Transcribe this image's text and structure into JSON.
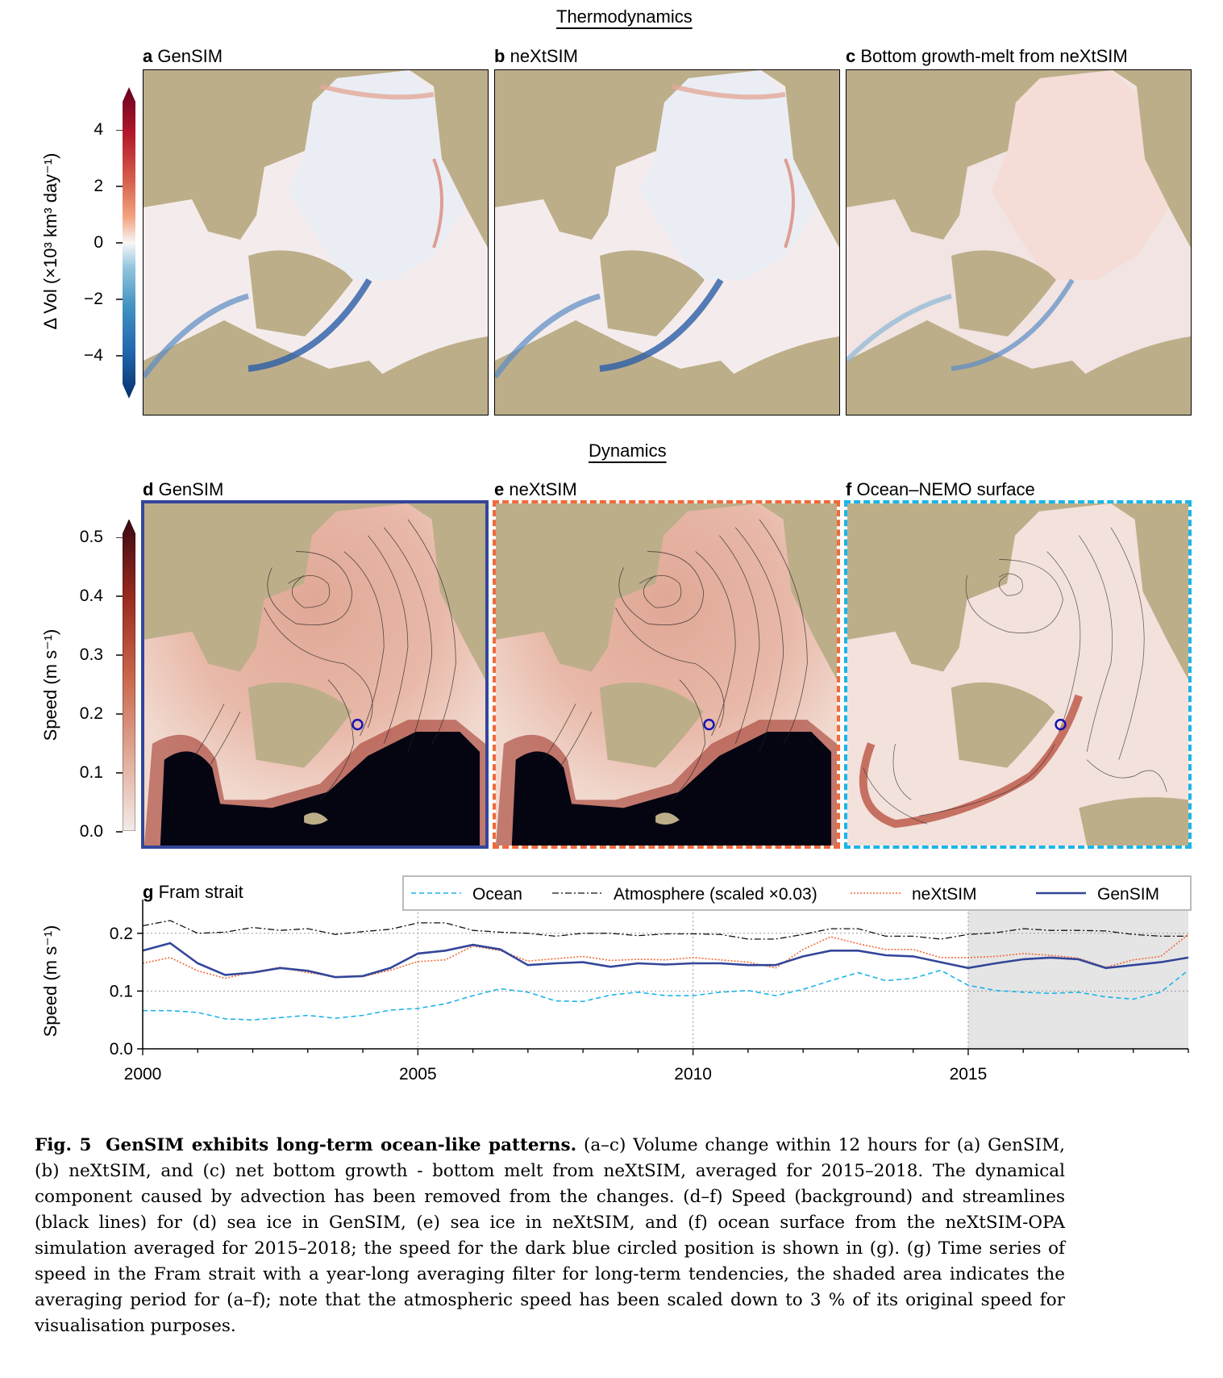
{
  "sections": {
    "thermo_title": "Thermodynamics",
    "dyn_title": "Dynamics"
  },
  "panels": {
    "a": {
      "letter": "a",
      "title": "GenSIM"
    },
    "b": {
      "letter": "b",
      "title": "neXtSIM"
    },
    "c": {
      "letter": "c",
      "title": "Bottom growth-melt from neXtSIM"
    },
    "d": {
      "letter": "d",
      "title": "GenSIM"
    },
    "e": {
      "letter": "e",
      "title": "neXtSIM"
    },
    "f": {
      "letter": "f",
      "title": "Ocean–NEMO surface"
    }
  },
  "colorbars": {
    "thermo": {
      "label": "Δ Vol (×10³ km³ day⁻¹)",
      "ticks": [
        "4",
        "2",
        "0",
        "−2",
        "−4"
      ]
    },
    "dyn": {
      "label": "Speed (m s⁻¹)",
      "ticks": [
        "0.5",
        "0.4",
        "0.3",
        "0.2",
        "0.1",
        "0.0"
      ]
    }
  },
  "colors": {
    "gensim": "#334699",
    "nextsim": "#f06a3a",
    "ocean": "#1bb5e8",
    "atmosphere": "#111111",
    "land": "#bdae8a",
    "cbar_top": "#67001f",
    "cbar_bottom": "#08306b"
  },
  "chart_data": {
    "type": "line",
    "title": "g Fram strait",
    "panel_letter": "g",
    "panel_title": "Fram strait",
    "ylabel": "Speed (m s⁻¹)",
    "ylim": [
      0.0,
      0.25
    ],
    "yticks": [
      "0.0",
      "0.1",
      "0.2"
    ],
    "xlim": [
      2000,
      2019
    ],
    "xticks": [
      "2000",
      "2005",
      "2010",
      "2015"
    ],
    "shaded_period": [
      2015,
      2019
    ],
    "legend_location": "top-right",
    "x": [
      2000.0,
      2000.5,
      2001.0,
      2001.5,
      2002.0,
      2002.5,
      2003.0,
      2003.5,
      2004.0,
      2004.5,
      2005.0,
      2005.5,
      2006.0,
      2006.5,
      2007.0,
      2007.5,
      2008.0,
      2008.5,
      2009.0,
      2009.5,
      2010.0,
      2010.5,
      2011.0,
      2011.5,
      2012.0,
      2012.5,
      2013.0,
      2013.5,
      2014.0,
      2014.5,
      2015.0,
      2015.5,
      2016.0,
      2016.5,
      2017.0,
      2017.5,
      2018.0,
      2018.5,
      2019.0
    ],
    "series": [
      {
        "name": "Ocean",
        "style": "dashed",
        "values": [
          0.066,
          0.066,
          0.063,
          0.052,
          0.05,
          0.054,
          0.058,
          0.053,
          0.058,
          0.067,
          0.07,
          0.078,
          0.092,
          0.104,
          0.098,
          0.083,
          0.082,
          0.093,
          0.098,
          0.092,
          0.092,
          0.098,
          0.101,
          0.092,
          0.103,
          0.118,
          0.132,
          0.118,
          0.122,
          0.136,
          0.11,
          0.101,
          0.098,
          0.096,
          0.098,
          0.09,
          0.086,
          0.098,
          0.136
        ]
      },
      {
        "name": "Atmosphere (scaled ×0.03)",
        "style": "dashdot",
        "values": [
          0.213,
          0.222,
          0.2,
          0.202,
          0.21,
          0.205,
          0.208,
          0.198,
          0.203,
          0.207,
          0.218,
          0.218,
          0.205,
          0.202,
          0.2,
          0.195,
          0.2,
          0.2,
          0.196,
          0.199,
          0.199,
          0.198,
          0.19,
          0.19,
          0.198,
          0.208,
          0.208,
          0.195,
          0.195,
          0.19,
          0.198,
          0.201,
          0.208,
          0.205,
          0.205,
          0.204,
          0.198,
          0.195,
          0.195
        ]
      },
      {
        "name": "neXtSIM",
        "style": "dotted",
        "values": [
          0.148,
          0.158,
          0.135,
          0.122,
          0.133,
          0.141,
          0.132,
          0.125,
          0.125,
          0.136,
          0.151,
          0.154,
          0.178,
          0.17,
          0.152,
          0.156,
          0.16,
          0.153,
          0.155,
          0.154,
          0.158,
          0.154,
          0.15,
          0.14,
          0.172,
          0.194,
          0.182,
          0.172,
          0.172,
          0.158,
          0.158,
          0.16,
          0.165,
          0.162,
          0.157,
          0.141,
          0.154,
          0.16,
          0.198
        ]
      },
      {
        "name": "GenSIM",
        "style": "solid",
        "values": [
          0.17,
          0.183,
          0.148,
          0.128,
          0.132,
          0.14,
          0.135,
          0.124,
          0.126,
          0.14,
          0.165,
          0.17,
          0.18,
          0.172,
          0.145,
          0.148,
          0.15,
          0.142,
          0.148,
          0.146,
          0.148,
          0.148,
          0.145,
          0.145,
          0.16,
          0.17,
          0.17,
          0.162,
          0.16,
          0.15,
          0.14,
          0.148,
          0.155,
          0.158,
          0.155,
          0.14,
          0.145,
          0.15,
          0.158
        ]
      }
    ]
  },
  "caption": {
    "fig_label": "Fig. 5",
    "headline": "GenSIM exhibits long-term ocean-like patterns.",
    "text": "(a–c) Volume change within 12 hours for (a) GenSIM, (b) neXtSIM, and (c) net bottom growth - bottom melt from neXtSIM, averaged for 2015–2018. The dynamical component caused by advection has been removed from the changes. (d–f) Speed (background) and streamlines (black lines) for (d) sea ice in GenSIM, (e) sea ice in neXtSIM, and (f) ocean surface from the neXtSIM-OPA simulation averaged for 2015–2018; the speed for the dark blue circled position is shown in (g). (g) Time series of speed in the Fram strait with a year-long averaging filter for long-term tendencies, the shaded area indicates the averaging period for (a–f); note that the atmospheric speed has been scaled down to 3 % of its original speed for visualisation purposes."
  }
}
